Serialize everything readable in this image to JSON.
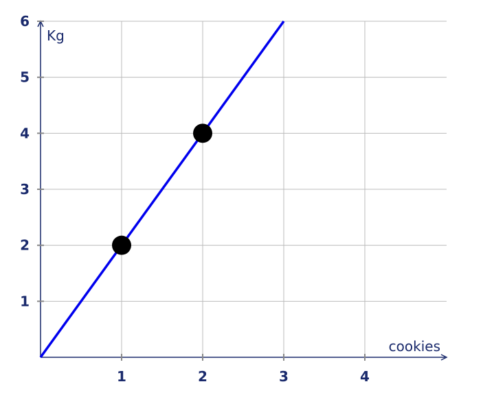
{
  "chart_data": {
    "type": "line",
    "title": "",
    "xlabel": "cookies",
    "ylabel": "Kg",
    "xlim": [
      0,
      5
    ],
    "ylim": [
      0,
      6
    ],
    "x_ticks": [
      1,
      2,
      3,
      4
    ],
    "y_ticks": [
      1,
      2,
      3,
      4,
      5,
      6
    ],
    "grid": true,
    "line": {
      "x": [
        0,
        3
      ],
      "y": [
        0,
        6
      ],
      "color": "#0000ee"
    },
    "points": [
      {
        "x": 1,
        "y": 2
      },
      {
        "x": 2,
        "y": 4
      }
    ],
    "point_color": "#000000",
    "axis_color": "#1a2a6c",
    "grid_color": "#bbbbbb"
  }
}
